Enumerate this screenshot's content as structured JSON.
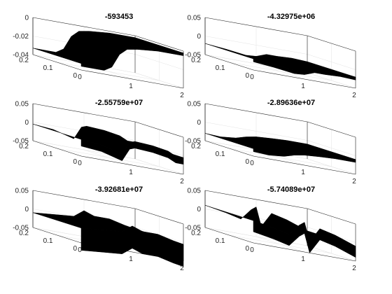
{
  "chart_data": [
    {
      "type": "surface",
      "title": "-593453",
      "xlim": [
        0,
        2
      ],
      "ylim": [
        0,
        0.2
      ],
      "zlim": [
        -0.04,
        0
      ],
      "xticks": [
        "0",
        "1",
        "2"
      ],
      "yticks": [
        "0",
        "0.1",
        "0.2"
      ],
      "zticks": [
        "-0.04",
        "-0.02",
        "0"
      ],
      "grid": true,
      "surface_color": "#000000",
      "profile": {
        "x": [
          0.0,
          0.45,
          0.6,
          0.75,
          0.9,
          1.1,
          1.5,
          2.0
        ],
        "z": [
          -0.033,
          -0.033,
          -0.028,
          -0.013,
          -0.006,
          -0.004,
          -0.002,
          -0.002
        ]
      },
      "band_z": 0.003
    },
    {
      "type": "surface",
      "title": "-4.32975e+06",
      "xlim": [
        0,
        2
      ],
      "ylim": [
        0,
        0.2
      ],
      "zlim": [
        -0.05,
        0.05
      ],
      "xticks": [
        "0",
        "1",
        "2"
      ],
      "yticks": [
        "0",
        "0.1",
        "0.2"
      ],
      "zticks": [
        "-0.05",
        "0",
        "0.05"
      ],
      "grid": true,
      "surface_color": "#000000",
      "profile": {
        "x": [
          0.0,
          0.4,
          0.8,
          1.0,
          1.2,
          1.4,
          1.7,
          2.0
        ],
        "z": [
          -0.02,
          -0.025,
          -0.032,
          -0.03,
          -0.02,
          -0.02,
          -0.018,
          -0.02
        ]
      },
      "band_z": 0.008
    },
    {
      "type": "surface",
      "title": "-2.55759e+07",
      "xlim": [
        0,
        2
      ],
      "ylim": [
        0,
        0.2
      ],
      "zlim": [
        -0.05,
        0.05
      ],
      "xticks": [
        "0",
        "1",
        "2"
      ],
      "yticks": [
        "0",
        "0.1",
        "0.2"
      ],
      "zticks": [
        "-0.05",
        "0",
        "0.05"
      ],
      "grid": true,
      "surface_color": "#000000",
      "profile": {
        "x": [
          0.0,
          0.4,
          0.8,
          0.95,
          1.05,
          1.4,
          1.7,
          1.85,
          2.0
        ],
        "z": [
          -0.005,
          -0.01,
          -0.025,
          0.01,
          0.015,
          0.012,
          0.005,
          -0.005,
          -0.005
        ]
      },
      "band_z": 0.018
    },
    {
      "type": "surface",
      "title": "-2.89636e+07",
      "xlim": [
        0,
        2
      ],
      "ylim": [
        0,
        0.2
      ],
      "zlim": [
        -0.05,
        0.05
      ],
      "xticks": [
        "0",
        "1",
        "2"
      ],
      "yticks": [
        "0",
        "0.1",
        "0.2"
      ],
      "zticks": [
        "-0.05",
        "0",
        "0.05"
      ],
      "grid": true,
      "surface_color": "#000000",
      "profile": {
        "x": [
          0.0,
          0.3,
          0.6,
          0.8,
          1.0,
          1.3,
          1.6,
          2.0
        ],
        "z": [
          -0.03,
          -0.032,
          -0.028,
          -0.02,
          -0.015,
          -0.012,
          -0.01,
          -0.01
        ]
      },
      "band_z": 0.008
    },
    {
      "type": "surface",
      "title": "-3.92681e+07",
      "xlim": [
        0,
        2
      ],
      "ylim": [
        0,
        0.2
      ],
      "zlim": [
        -0.05,
        0.05
      ],
      "xticks": [
        "0",
        "1",
        "2"
      ],
      "yticks": [
        "0",
        "0.1",
        "0.2"
      ],
      "zticks": [
        "-0.05",
        "0",
        "0.05"
      ],
      "grid": true,
      "surface_color": "#000000",
      "profile": {
        "x": [
          0.0,
          0.4,
          0.8,
          1.0,
          1.2,
          1.5,
          1.8,
          2.0
        ],
        "z": [
          -0.01,
          -0.005,
          0.0,
          0.02,
          0.01,
          0.01,
          0.0,
          -0.005
        ]
      },
      "band_z": 0.06
    },
    {
      "type": "surface",
      "title": "-5.74089e+07",
      "xlim": [
        0,
        2
      ],
      "ylim": [
        0,
        0.2
      ],
      "zlim": [
        -0.05,
        0.05
      ],
      "xticks": [
        "0",
        "1",
        "2"
      ],
      "yticks": [
        "0",
        "0.1",
        "0.2"
      ],
      "zticks": [
        "-0.05",
        "0",
        "0.05"
      ],
      "grid": true,
      "surface_color": "#000000",
      "profile": {
        "x": [
          0.0,
          0.4,
          0.7,
          0.9,
          1.0,
          1.1,
          1.3,
          1.6,
          2.0
        ],
        "z": [
          0.01,
          0.0,
          -0.01,
          0.02,
          0.03,
          -0.02,
          0.02,
          0.01,
          -0.01
        ]
      },
      "band_z": 0.03
    }
  ]
}
